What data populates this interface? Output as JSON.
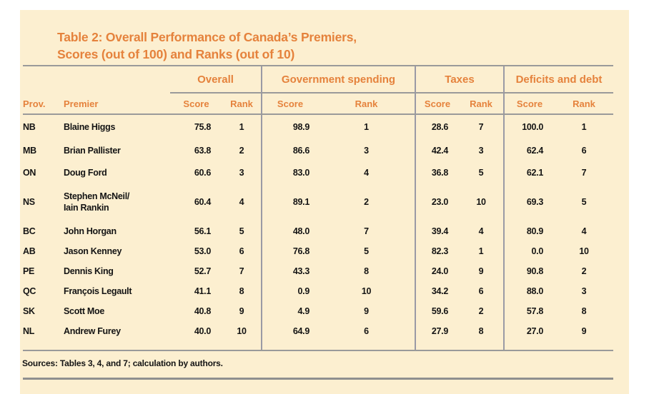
{
  "title": {
    "line1": "Table 2: Overall Performance of Canada’s Premiers,",
    "line2": "Scores (out of 100) and Ranks (out of 10)"
  },
  "table": {
    "group_headers": [
      "Overall",
      "Government spending",
      "Taxes",
      "Deficits and debt"
    ],
    "col_headers": {
      "prov": "Prov.",
      "premier": "Premier",
      "score": "Score",
      "rank": "Rank"
    },
    "rows": [
      {
        "prov": "NB",
        "premier": "Blaine Higgs",
        "premier2": "",
        "overall_score": "75.8",
        "overall_rank": "1",
        "gov_score": "98.9",
        "gov_rank": "1",
        "tax_score": "28.6",
        "tax_rank": "7",
        "deficit_score": "100.0",
        "deficit_rank": "1"
      },
      {
        "prov": "MB",
        "premier": "Brian Pallister",
        "premier2": "",
        "overall_score": "63.8",
        "overall_rank": "2",
        "gov_score": "86.6",
        "gov_rank": "3",
        "tax_score": "42.4",
        "tax_rank": "3",
        "deficit_score": "62.4",
        "deficit_rank": "6"
      },
      {
        "prov": "ON",
        "premier": "Doug Ford",
        "premier2": "",
        "overall_score": "60.6",
        "overall_rank": "3",
        "gov_score": "83.0",
        "gov_rank": "4",
        "tax_score": "36.8",
        "tax_rank": "5",
        "deficit_score": "62.1",
        "deficit_rank": "7"
      },
      {
        "prov": "NS",
        "premier": "Stephen McNeil/",
        "premier2": "Iain Rankin",
        "overall_score": "60.4",
        "overall_rank": "4",
        "gov_score": "89.1",
        "gov_rank": "2",
        "tax_score": "23.0",
        "tax_rank": "10",
        "deficit_score": "69.3",
        "deficit_rank": "5"
      },
      {
        "prov": "BC",
        "premier": "John Horgan",
        "premier2": "",
        "overall_score": "56.1",
        "overall_rank": "5",
        "gov_score": "48.0",
        "gov_rank": "7",
        "tax_score": "39.4",
        "tax_rank": "4",
        "deficit_score": "80.9",
        "deficit_rank": "4"
      },
      {
        "prov": "AB",
        "premier": "Jason Kenney",
        "premier2": "",
        "overall_score": "53.0",
        "overall_rank": "6",
        "gov_score": "76.8",
        "gov_rank": "5",
        "tax_score": "82.3",
        "tax_rank": "1",
        "deficit_score": "0.0",
        "deficit_rank": "10"
      },
      {
        "prov": "PE",
        "premier": "Dennis King",
        "premier2": "",
        "overall_score": "52.7",
        "overall_rank": "7",
        "gov_score": "43.3",
        "gov_rank": "8",
        "tax_score": "24.0",
        "tax_rank": "9",
        "deficit_score": "90.8",
        "deficit_rank": "2"
      },
      {
        "prov": "QC",
        "premier": "François Legault",
        "premier2": "",
        "overall_score": "41.1",
        "overall_rank": "8",
        "gov_score": "0.9",
        "gov_rank": "10",
        "tax_score": "34.2",
        "tax_rank": "6",
        "deficit_score": "88.0",
        "deficit_rank": "3"
      },
      {
        "prov": "SK",
        "premier": "Scott Moe",
        "premier2": "",
        "overall_score": "40.8",
        "overall_rank": "9",
        "gov_score": "4.9",
        "gov_rank": "9",
        "tax_score": "59.6",
        "tax_rank": "2",
        "deficit_score": "57.8",
        "deficit_rank": "8"
      },
      {
        "prov": "NL",
        "premier": "Andrew Furey",
        "premier2": "",
        "overall_score": "40.0",
        "overall_rank": "10",
        "gov_score": "64.9",
        "gov_rank": "6",
        "tax_score": "27.9",
        "tax_rank": "8",
        "deficit_score": "27.0",
        "deficit_rank": "9"
      }
    ]
  },
  "sources": "Sources: Tables 3, 4, and 7; calculation by authors.",
  "colors": {
    "accent": "#e5823c",
    "panel-bg": "#fcefd0",
    "rule": "#9a9a9a",
    "vline": "#9a9aa5",
    "text": "#141414"
  }
}
